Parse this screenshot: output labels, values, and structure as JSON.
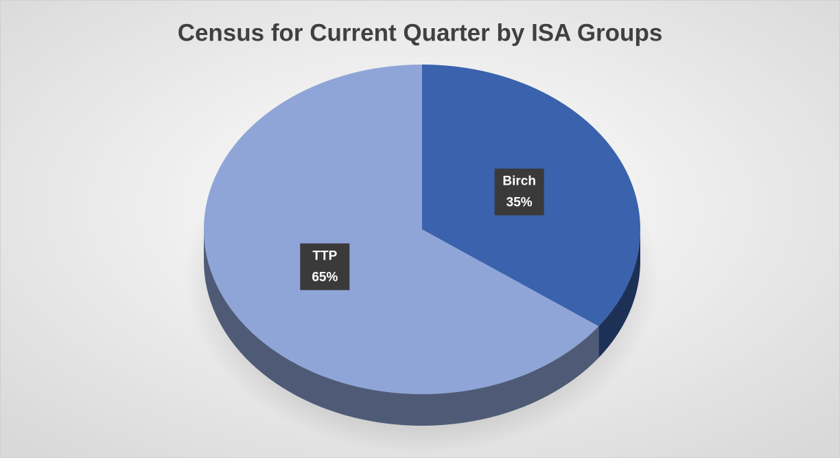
{
  "chart_data": {
    "type": "pie",
    "title": "Census for Current Quarter by ISA Groups",
    "categories": [
      "Birch",
      "TTP"
    ],
    "values": [
      35,
      65
    ],
    "value_labels": [
      "35%",
      "65%"
    ],
    "colors": [
      "#3a62ad",
      "#8fa5d7"
    ]
  }
}
